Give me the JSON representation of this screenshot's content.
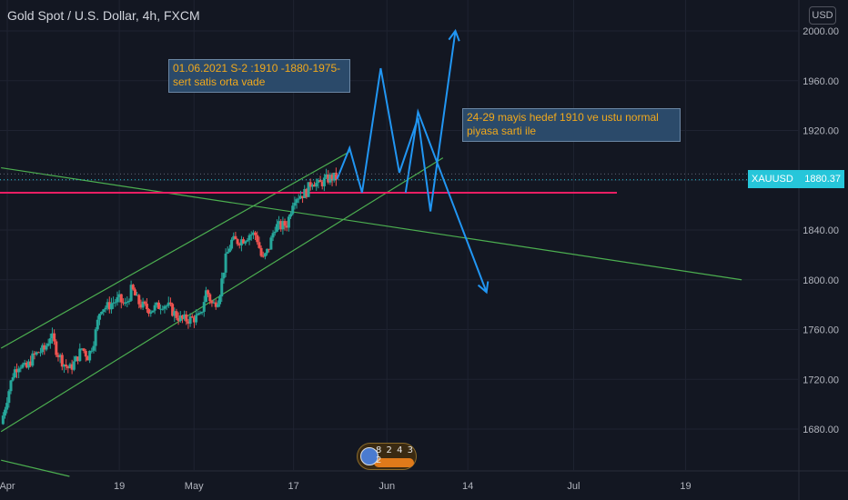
{
  "header": {
    "title": "Gold Spot / U.S. Dollar, 4h, FXCM",
    "currency_button": "USD"
  },
  "price_tag": {
    "symbol": "XAUUSD",
    "value": "1880.37"
  },
  "notes": [
    {
      "text": "01.06.2021 S-2 :1910 -1880-1975-\nsert satis orta vade",
      "color": "#f0a81c"
    },
    {
      "text": "24-29 mayis hedef 1910 ve ustu normal\npiyasa sarti ile",
      "color": "#f0a81c"
    }
  ],
  "badge": {
    "digits": "8 2 4 3 2"
  },
  "colors": {
    "background": "#131722",
    "grid": "#1f2331",
    "up_candle": "#26a69a",
    "down_candle": "#ef5350",
    "channel_line": "#4caf50",
    "support_line": "#e91e63",
    "projection": "#2196f3",
    "price_line": "#26c6da",
    "axis_text": "#b2b5be"
  },
  "chart_data": {
    "type": "candlestick",
    "title": "Gold Spot / U.S. Dollar, 4h, FXCM",
    "y_axis": {
      "ylim": [
        1655,
        2015
      ],
      "ticks": [
        1680,
        1720,
        1760,
        1800,
        1840,
        1880,
        1920,
        1960,
        2000
      ],
      "tick_labels": [
        "1680.00",
        "1720.00",
        "1760.00",
        "1800.00",
        "1840.00",
        "1880.00",
        "1920.00",
        "1960.00",
        "2000.00"
      ]
    },
    "x_axis": {
      "start": "2021-04-01",
      "end": "2021-07-28",
      "ticks": [
        {
          "date": "2021-04-01",
          "label": "Apr"
        },
        {
          "date": "2021-04-19",
          "label": "19"
        },
        {
          "date": "2021-05-01",
          "label": "May"
        },
        {
          "date": "2021-05-17",
          "label": "17"
        },
        {
          "date": "2021-06-01",
          "label": "Jun"
        },
        {
          "date": "2021-06-14",
          "label": "14"
        },
        {
          "date": "2021-07-01",
          "label": "Jul"
        },
        {
          "date": "2021-07-19",
          "label": "19"
        }
      ]
    },
    "candles_close_path": [
      [
        "2021-03-31",
        1684
      ],
      [
        "2021-04-01",
        1706
      ],
      [
        "2021-04-02",
        1726
      ],
      [
        "2021-04-03",
        1733
      ],
      [
        "2021-04-04",
        1728
      ],
      [
        "2021-04-05",
        1737
      ],
      [
        "2021-04-06",
        1742
      ],
      [
        "2021-04-07",
        1744
      ],
      [
        "2021-04-08",
        1756
      ],
      [
        "2021-04-09",
        1742
      ],
      [
        "2021-04-10",
        1733
      ],
      [
        "2021-04-11",
        1728
      ],
      [
        "2021-04-12",
        1735
      ],
      [
        "2021-04-13",
        1745
      ],
      [
        "2021-04-14",
        1738
      ],
      [
        "2021-04-15",
        1753
      ],
      [
        "2021-04-16",
        1778
      ],
      [
        "2021-04-17",
        1778
      ],
      [
        "2021-04-18",
        1782
      ],
      [
        "2021-04-19",
        1784
      ],
      [
        "2021-04-20",
        1779
      ],
      [
        "2021-04-21",
        1793
      ],
      [
        "2021-04-22",
        1782
      ],
      [
        "2021-04-23",
        1778
      ],
      [
        "2021-04-24",
        1776
      ],
      [
        "2021-04-25",
        1778
      ],
      [
        "2021-04-26",
        1781
      ],
      [
        "2021-04-27",
        1778
      ],
      [
        "2021-04-28",
        1772
      ],
      [
        "2021-04-29",
        1768
      ],
      [
        "2021-04-30",
        1768
      ],
      [
        "2021-05-01",
        1769
      ],
      [
        "2021-05-02",
        1770
      ],
      [
        "2021-05-03",
        1792
      ],
      [
        "2021-05-04",
        1779
      ],
      [
        "2021-05-05",
        1786
      ],
      [
        "2021-05-06",
        1815
      ],
      [
        "2021-05-07",
        1831
      ],
      [
        "2021-05-08",
        1831
      ],
      [
        "2021-05-09",
        1833
      ],
      [
        "2021-05-10",
        1837
      ],
      [
        "2021-05-11",
        1836
      ],
      [
        "2021-05-12",
        1815
      ],
      [
        "2021-05-13",
        1825
      ],
      [
        "2021-05-14",
        1843
      ],
      [
        "2021-05-15",
        1843
      ],
      [
        "2021-05-16",
        1845
      ],
      [
        "2021-05-17",
        1866
      ],
      [
        "2021-05-18",
        1868
      ],
      [
        "2021-05-19",
        1870
      ],
      [
        "2021-05-20",
        1880
      ],
      [
        "2021-05-21",
        1876
      ],
      [
        "2021-05-22",
        1880
      ],
      [
        "2021-05-23",
        1882
      ],
      [
        "2021-05-24",
        1882
      ]
    ],
    "last_price": 1880.37,
    "horizontal_level": 1870,
    "channel_lines": [
      {
        "from": [
          "2021-03-31",
          1745
        ],
        "to": [
          "2021-05-26",
          1903
        ]
      },
      {
        "from": [
          "2021-03-31",
          1678
        ],
        "to": [
          "2021-06-10",
          1898
        ]
      },
      {
        "from": [
          "2021-03-31",
          1890
        ],
        "to": [
          "2021-07-28",
          1800
        ]
      },
      {
        "from": [
          "2021-03-31",
          1655
        ],
        "to": [
          "2021-04-11",
          1642
        ]
      }
    ],
    "projection_path_1": [
      [
        "2021-05-24",
        1881
      ],
      [
        "2021-05-26",
        1906
      ],
      [
        "2021-05-28",
        1870
      ],
      [
        "2021-05-31",
        1970
      ],
      [
        "2021-06-03",
        1886
      ],
      [
        "2021-06-06",
        1930
      ],
      [
        "2021-06-08",
        1855
      ],
      [
        "2021-06-12",
        2000
      ]
    ],
    "projection_path_2": [
      [
        "2021-06-04",
        1870
      ],
      [
        "2021-06-06",
        1935
      ],
      [
        "2021-06-09",
        1895
      ],
      [
        "2021-06-17",
        1790
      ]
    ]
  }
}
